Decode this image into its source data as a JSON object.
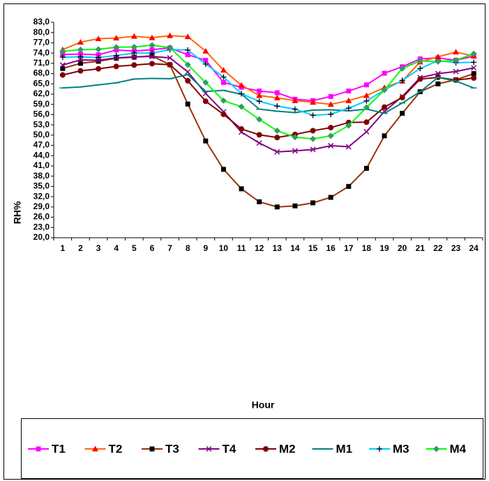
{
  "chart_data": {
    "type": "line",
    "x_label": "Hour",
    "y_label": "RH%",
    "categories": [
      "1",
      "2",
      "3",
      "4",
      "5",
      "6",
      "7",
      "8",
      "9",
      "10",
      "11",
      "12",
      "13",
      "14",
      "15",
      "16",
      "17",
      "18",
      "19",
      "20",
      "21",
      "22",
      "23",
      "24"
    ],
    "ylim": [
      20,
      83
    ],
    "yticks": [
      {
        "value": 20,
        "label": "20,0"
      },
      {
        "value": 23,
        "label": "23,0"
      },
      {
        "value": 26,
        "label": "26,0"
      },
      {
        "value": 29,
        "label": "29,0"
      },
      {
        "value": 32,
        "label": "32,0"
      },
      {
        "value": 35,
        "label": "35,0"
      },
      {
        "value": 38,
        "label": "38,0"
      },
      {
        "value": 41,
        "label": "41,0"
      },
      {
        "value": 44,
        "label": "44,0"
      },
      {
        "value": 47,
        "label": "47,0"
      },
      {
        "value": 50,
        "label": "50,0"
      },
      {
        "value": 53,
        "label": "53,0"
      },
      {
        "value": 56,
        "label": "56,0"
      },
      {
        "value": 59,
        "label": "59,0"
      },
      {
        "value": 62,
        "label": "62,0"
      },
      {
        "value": 65,
        "label": "65,0"
      },
      {
        "value": 68,
        "label": "68,0"
      },
      {
        "value": 71,
        "label": "71,0"
      },
      {
        "value": 74,
        "label": "74,0"
      },
      {
        "value": 77,
        "label": "77,0"
      },
      {
        "value": 80,
        "label": "80,0"
      },
      {
        "value": 83,
        "label": "83,0"
      }
    ],
    "grid": false,
    "legend": "bottom",
    "series": [
      {
        "name": "T1",
        "color": "#ff00ff",
        "marker": "square",
        "marker_color": "#ff00ff",
        "values": [
          73.6,
          73.7,
          73.5,
          74.9,
          74.6,
          75.0,
          75.5,
          73.5,
          71.9,
          65.4,
          64.0,
          62.9,
          62.4,
          60.5,
          60.1,
          61.3,
          62.9,
          64.7,
          68.1,
          70.0,
          72.3,
          72.6,
          71.9,
          73.1
        ]
      },
      {
        "name": "T2",
        "color": "#ff6600",
        "marker": "triangle",
        "marker_color": "#ff0000",
        "values": [
          75.0,
          77.2,
          78.2,
          78.4,
          78.9,
          78.5,
          79.1,
          78.8,
          74.6,
          69.0,
          64.6,
          61.6,
          60.9,
          60.1,
          59.6,
          59.0,
          60.1,
          61.6,
          63.9,
          65.8,
          71.4,
          72.9,
          74.3,
          73.1
        ]
      },
      {
        "name": "T3",
        "color": "#993300",
        "marker": "square",
        "marker_color": "#000000",
        "values": [
          69.5,
          71.0,
          71.6,
          72.5,
          72.8,
          73.2,
          70.6,
          59.1,
          48.3,
          40.0,
          34.3,
          30.5,
          29.0,
          29.3,
          30.2,
          31.8,
          35.0,
          40.3,
          49.8,
          56.4,
          62.7,
          65.0,
          66.2,
          68.0
        ]
      },
      {
        "name": "T4",
        "color": "#800080",
        "marker": "x",
        "marker_color": "#800080",
        "values": [
          70.5,
          72.0,
          71.9,
          72.6,
          72.9,
          73.0,
          72.6,
          68.5,
          62.2,
          56.8,
          50.9,
          47.7,
          45.1,
          45.4,
          45.8,
          46.9,
          46.6,
          51.0,
          56.9,
          61.3,
          66.8,
          68.0,
          68.6,
          69.7
        ]
      },
      {
        "name": "M2",
        "color": "#800000",
        "marker": "circle",
        "marker_color": "#800000",
        "values": [
          67.6,
          68.8,
          69.4,
          70.1,
          70.5,
          70.9,
          70.6,
          65.9,
          59.9,
          56.1,
          51.8,
          50.1,
          49.3,
          50.2,
          51.3,
          52.2,
          53.7,
          53.8,
          58.2,
          61.0,
          66.4,
          66.9,
          66.1,
          66.7
        ]
      },
      {
        "name": "M1",
        "color": "#008080",
        "marker": "dash",
        "marker_color": "#008080",
        "values": [
          63.8,
          64.1,
          64.7,
          65.3,
          66.4,
          66.6,
          66.5,
          67.7,
          62.8,
          63.1,
          62.0,
          57.6,
          57.0,
          56.6,
          57.3,
          57.4,
          57.1,
          57.6,
          56.4,
          59.4,
          62.7,
          66.9,
          65.8,
          63.8
        ]
      },
      {
        "name": "M3",
        "color": "#00ccff",
        "marker": "plus",
        "marker_color": "#000000",
        "values": [
          72.8,
          72.9,
          72.7,
          73.3,
          74.0,
          74.0,
          75.0,
          74.9,
          70.8,
          67.0,
          62.1,
          59.9,
          58.5,
          57.6,
          55.8,
          56.1,
          57.9,
          60.0,
          63.2,
          66.0,
          69.5,
          71.8,
          71.2,
          71.3
        ]
      },
      {
        "name": "M4",
        "color": "#00ff00",
        "marker": "diamond",
        "marker_color": "#339966",
        "values": [
          74.5,
          75.0,
          75.1,
          75.7,
          75.8,
          76.3,
          75.6,
          70.6,
          65.4,
          60.1,
          58.3,
          54.6,
          51.3,
          49.4,
          48.9,
          49.8,
          52.8,
          58.1,
          63.2,
          69.5,
          71.7,
          71.5,
          71.9,
          73.8
        ]
      }
    ]
  }
}
